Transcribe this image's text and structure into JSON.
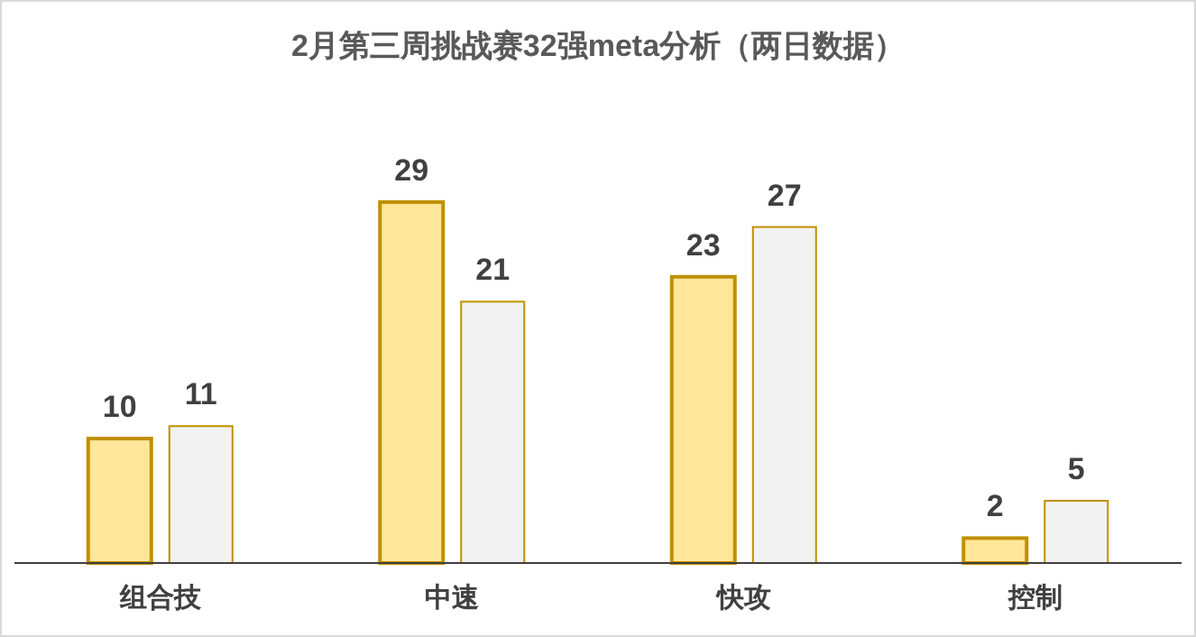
{
  "chart_data": {
    "type": "bar",
    "title": "2月第三周挑战赛32强meta分析（两日数据）",
    "categories": [
      "组合技",
      "中速",
      "快攻",
      "控制"
    ],
    "series": [
      {
        "color": "#ffe699",
        "values": [
          10,
          29,
          23,
          2
        ]
      },
      {
        "color": "#f2f2f2",
        "values": [
          11,
          21,
          27,
          5
        ]
      }
    ],
    "data_labels": true
  }
}
